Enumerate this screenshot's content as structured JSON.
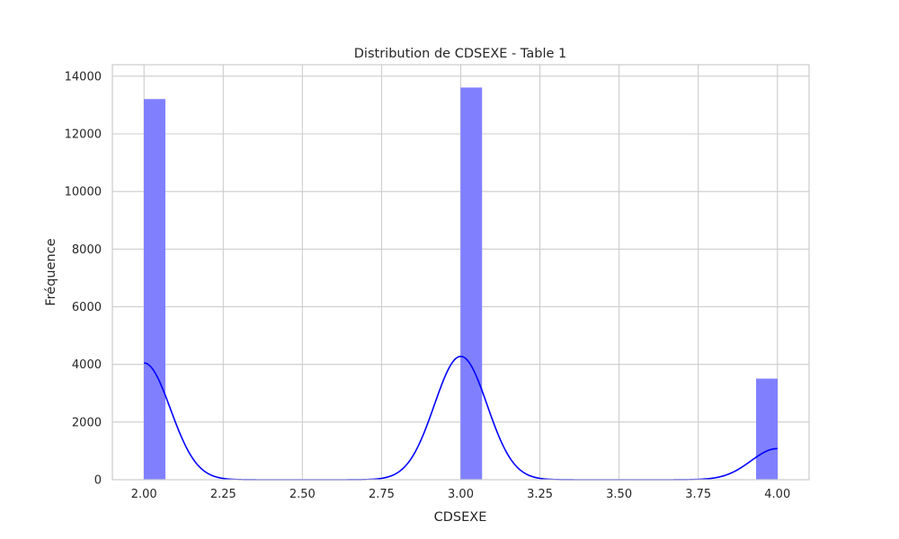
{
  "chart_data": {
    "type": "bar",
    "subtype": "histogram-with-kde",
    "title": "Distribution de CDSEXE - Table 1",
    "xlabel": "CDSEXE",
    "ylabel": "Fréquence",
    "xlim": [
      1.9,
      4.1
    ],
    "ylim": [
      0,
      14400
    ],
    "xticks": [
      2.0,
      2.25,
      2.5,
      2.75,
      3.0,
      3.25,
      3.5,
      3.75,
      4.0
    ],
    "xtick_labels": [
      "2.00",
      "2.25",
      "2.50",
      "2.75",
      "3.00",
      "3.25",
      "3.50",
      "3.75",
      "4.00"
    ],
    "yticks": [
      0,
      2000,
      4000,
      6000,
      8000,
      10000,
      12000,
      14000
    ],
    "ytick_labels": [
      "0",
      "2000",
      "4000",
      "6000",
      "8000",
      "10000",
      "12000",
      "14000"
    ],
    "grid": true,
    "bars": [
      {
        "x0": 2.0,
        "x1": 2.0667,
        "value": 13200
      },
      {
        "x0": 3.0,
        "x1": 3.0667,
        "value": 13600
      },
      {
        "x0": 3.9333,
        "x1": 4.0,
        "value": 3500
      }
    ],
    "bar_color": "#8080ff",
    "kde_color": "#0000ff",
    "kde": {
      "components": [
        {
          "mean": 2.0,
          "sd": 0.0833,
          "peak": 4050
        },
        {
          "mean": 3.0,
          "sd": 0.0833,
          "peak": 4280
        },
        {
          "mean": 4.0,
          "sd": 0.0833,
          "peak": 1080
        }
      ],
      "x_range": [
        2.0,
        4.0
      ]
    }
  }
}
